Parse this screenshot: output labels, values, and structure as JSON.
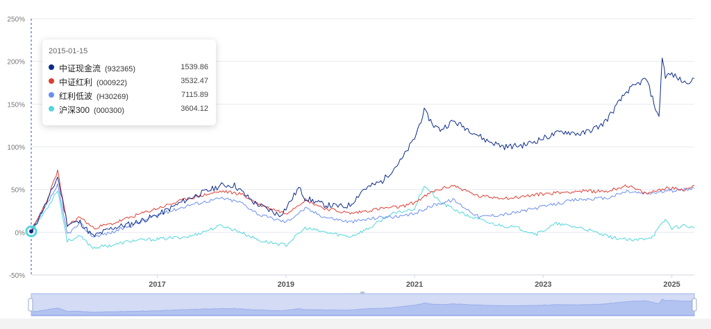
{
  "chart_data": {
    "type": "line",
    "y_axis": {
      "ticks": [
        "250%",
        "200%",
        "150%",
        "100%",
        "50%",
        "0%",
        "-50%"
      ],
      "ylim": [
        -50,
        250
      ],
      "unit": "%"
    },
    "x_axis": {
      "ticks": [
        "2017",
        "2019",
        "2021",
        "2023",
        "2025"
      ],
      "range": [
        "2015-01-15",
        "2025-03"
      ]
    },
    "grid": "horizontal",
    "legend": "tooltip",
    "tooltip": {
      "date": "2015-01-15",
      "rows": [
        {
          "name": "中证现金流",
          "code": "(932365)",
          "value": "1539.86",
          "color": "#0b2a8c"
        },
        {
          "name": "中证红利",
          "code": "(000922)",
          "value": "3532.47",
          "color": "#e03c32"
        },
        {
          "name": "红利低波",
          "code": "(H30269)",
          "value": "7115.89",
          "color": "#6b8ef0"
        },
        {
          "name": "沪深300",
          "code": "(000300)",
          "value": "3604.12",
          "color": "#54d6dc"
        }
      ]
    },
    "series": [
      {
        "name": "中证现金流",
        "color": "#0b2a8c",
        "x": [
          2015.04,
          2015.3,
          2015.45,
          2015.6,
          2015.8,
          2016.0,
          2016.3,
          2016.6,
          2017.0,
          2017.5,
          2018.0,
          2018.2,
          2018.5,
          2018.9,
          2019.0,
          2019.2,
          2019.3,
          2019.6,
          2019.9,
          2020.0,
          2020.2,
          2020.5,
          2020.8,
          2021.0,
          2021.15,
          2021.3,
          2021.4,
          2021.6,
          2021.9,
          2022.1,
          2022.4,
          2022.7,
          2023.0,
          2023.3,
          2023.6,
          2023.9,
          2024.0,
          2024.3,
          2024.6,
          2024.8,
          2024.85,
          2024.9,
          2025.0,
          2025.2,
          2025.35
        ],
        "values": [
          0,
          38,
          65,
          10,
          12,
          -5,
          5,
          10,
          20,
          40,
          55,
          55,
          35,
          20,
          28,
          52,
          40,
          32,
          30,
          32,
          50,
          60,
          85,
          110,
          142,
          125,
          120,
          130,
          118,
          108,
          100,
          102,
          110,
          118,
          115,
          125,
          133,
          165,
          180,
          133,
          205,
          183,
          185,
          175,
          180
        ]
      },
      {
        "name": "中证红利",
        "color": "#e03c32",
        "x": [
          2015.04,
          2015.3,
          2015.45,
          2015.6,
          2015.8,
          2016.0,
          2016.3,
          2016.6,
          2017.0,
          2017.5,
          2018.0,
          2018.3,
          2018.6,
          2019.0,
          2019.3,
          2019.6,
          2020.0,
          2020.5,
          2020.8,
          2021.0,
          2021.3,
          2021.6,
          2022.0,
          2022.5,
          2023.0,
          2023.5,
          2024.0,
          2024.3,
          2024.6,
          2024.9,
          2025.2,
          2025.35
        ],
        "values": [
          0,
          40,
          72,
          8,
          18,
          5,
          10,
          18,
          28,
          40,
          48,
          45,
          32,
          22,
          38,
          28,
          22,
          28,
          30,
          35,
          48,
          55,
          42,
          40,
          45,
          48,
          48,
          55,
          45,
          52,
          50,
          55
        ]
      },
      {
        "name": "红利低波",
        "color": "#6b8ef0",
        "x": [
          2015.04,
          2015.3,
          2015.45,
          2015.6,
          2015.8,
          2016.0,
          2016.3,
          2016.6,
          2017.0,
          2017.5,
          2018.0,
          2018.3,
          2018.6,
          2019.0,
          2019.3,
          2019.6,
          2020.0,
          2020.5,
          2020.8,
          2021.0,
          2021.3,
          2021.6,
          2022.0,
          2022.5,
          2023.0,
          2023.5,
          2024.0,
          2024.3,
          2024.6,
          2024.9,
          2025.2,
          2025.35
        ],
        "values": [
          0,
          35,
          55,
          -2,
          10,
          -5,
          0,
          8,
          20,
          32,
          40,
          35,
          20,
          12,
          28,
          18,
          12,
          18,
          18,
          22,
          32,
          38,
          18,
          22,
          30,
          38,
          40,
          48,
          45,
          48,
          50,
          52
        ]
      },
      {
        "name": "沪深300",
        "color": "#54d6dc",
        "x": [
          2015.04,
          2015.3,
          2015.45,
          2015.6,
          2015.8,
          2016.0,
          2016.3,
          2016.6,
          2017.0,
          2017.5,
          2018.0,
          2018.3,
          2018.6,
          2019.0,
          2019.3,
          2019.6,
          2020.0,
          2020.3,
          2020.6,
          2021.0,
          2021.15,
          2021.4,
          2021.8,
          2022.2,
          2022.6,
          2022.9,
          2023.2,
          2023.6,
          2024.0,
          2024.4,
          2024.7,
          2024.9,
          2025.0,
          2025.2,
          2025.35
        ],
        "values": [
          0,
          30,
          50,
          -10,
          -5,
          -18,
          -15,
          -10,
          -8,
          -5,
          8,
          0,
          -10,
          -15,
          5,
          0,
          -5,
          5,
          20,
          28,
          55,
          35,
          20,
          10,
          5,
          -2,
          10,
          5,
          -5,
          -10,
          -5,
          15,
          5,
          8,
          5
        ]
      }
    ]
  }
}
